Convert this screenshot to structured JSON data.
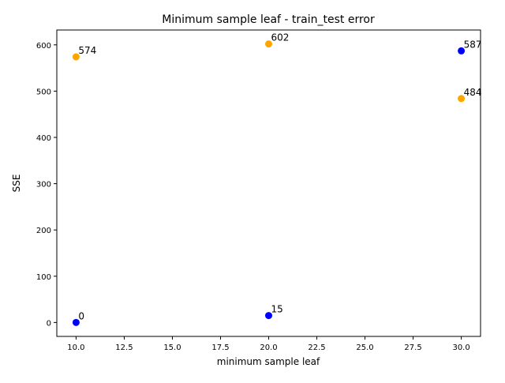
{
  "chart_data": {
    "type": "scatter",
    "title": "Minimum sample leaf - train_test error",
    "xlabel": "minimum sample leaf",
    "ylabel": "SSE",
    "xlim": [
      9.0,
      31.0
    ],
    "ylim": [
      -30.1,
      632.1
    ],
    "xticks": [
      "10.0",
      "12.5",
      "15.0",
      "17.5",
      "20.0",
      "22.5",
      "25.0",
      "27.5",
      "30.0"
    ],
    "xtick_values": [
      10,
      12.5,
      15,
      17.5,
      20,
      22.5,
      25,
      27.5,
      30
    ],
    "yticks": [
      "0",
      "100",
      "200",
      "300",
      "400",
      "500",
      "600"
    ],
    "ytick_values": [
      0,
      100,
      200,
      300,
      400,
      500,
      600
    ],
    "grid": false,
    "series": [
      {
        "color": "#0000ff",
        "points": [
          {
            "x": 10,
            "y": 0,
            "label": "0"
          },
          {
            "x": 20,
            "y": 15,
            "label": "15"
          },
          {
            "x": 30,
            "y": 587,
            "label": "587"
          }
        ]
      },
      {
        "color": "#ffa500",
        "points": [
          {
            "x": 10,
            "y": 574,
            "label": "574"
          },
          {
            "x": 20,
            "y": 602,
            "label": "602"
          },
          {
            "x": 30,
            "y": 484,
            "label": "484"
          }
        ]
      }
    ]
  }
}
